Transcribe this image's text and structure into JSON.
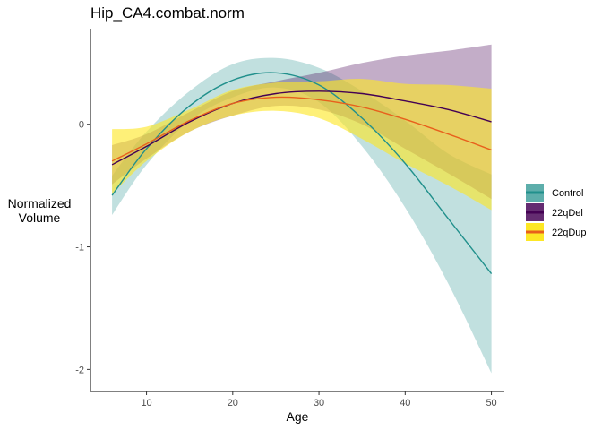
{
  "chart_data": {
    "type": "line",
    "title": "Hip_CA4.combat.norm",
    "xlabel": "Age",
    "ylabel": "Normalized\nVolume",
    "xlim": [
      3.5,
      51.5
    ],
    "ylim": [
      -2.18,
      0.78
    ],
    "x_ticks": [
      10,
      20,
      30,
      40,
      50
    ],
    "y_ticks": [
      0,
      -1,
      -2
    ],
    "x_tick_labels": [
      "10",
      "20",
      "30",
      "40",
      "50"
    ],
    "y_tick_labels": [
      "0",
      "-1",
      "-2"
    ],
    "grid": false,
    "legend_position": "right",
    "series": [
      {
        "name": "Control",
        "line_color": "#21908c",
        "band_color": "#21908c",
        "band_opacity": 0.28,
        "x": [
          6,
          10,
          15,
          20,
          25,
          30,
          35,
          40,
          45,
          50
        ],
        "y": [
          -0.58,
          -0.2,
          0.15,
          0.36,
          0.42,
          0.32,
          0.05,
          -0.32,
          -0.77,
          -1.22
        ],
        "lower": [
          -0.74,
          -0.33,
          0.03,
          0.22,
          0.3,
          0.18,
          -0.18,
          -0.68,
          -1.3,
          -2.03
        ],
        "upper": [
          -0.42,
          -0.06,
          0.27,
          0.49,
          0.54,
          0.46,
          0.27,
          0.03,
          -0.24,
          -0.41
        ]
      },
      {
        "name": "22qDel",
        "line_color": "#440154",
        "band_color": "#440154",
        "band_opacity": 0.32,
        "x": [
          6,
          10,
          15,
          20,
          25,
          30,
          35,
          40,
          45,
          50
        ],
        "y": [
          -0.33,
          -0.18,
          0.02,
          0.17,
          0.25,
          0.27,
          0.25,
          0.19,
          0.12,
          0.02
        ],
        "lower": [
          -0.49,
          -0.28,
          -0.06,
          0.07,
          0.15,
          0.12,
          0.0,
          -0.2,
          -0.4,
          -0.61
        ],
        "upper": [
          -0.17,
          -0.08,
          0.1,
          0.27,
          0.35,
          0.42,
          0.5,
          0.56,
          0.6,
          0.65
        ]
      },
      {
        "name": "22qDup",
        "line_color": "#e8601c",
        "band_color": "#fde725",
        "band_opacity": 0.62,
        "x": [
          6,
          10,
          15,
          20,
          25,
          30,
          35,
          40,
          45,
          50
        ],
        "y": [
          -0.3,
          -0.16,
          0.03,
          0.17,
          0.22,
          0.2,
          0.14,
          0.04,
          -0.08,
          -0.21
        ],
        "lower": [
          -0.57,
          -0.3,
          -0.06,
          0.07,
          0.11,
          0.05,
          -0.12,
          -0.32,
          -0.5,
          -0.7
        ],
        "upper": [
          -0.04,
          -0.02,
          0.12,
          0.28,
          0.34,
          0.35,
          0.37,
          0.33,
          0.32,
          0.29
        ]
      }
    ]
  }
}
